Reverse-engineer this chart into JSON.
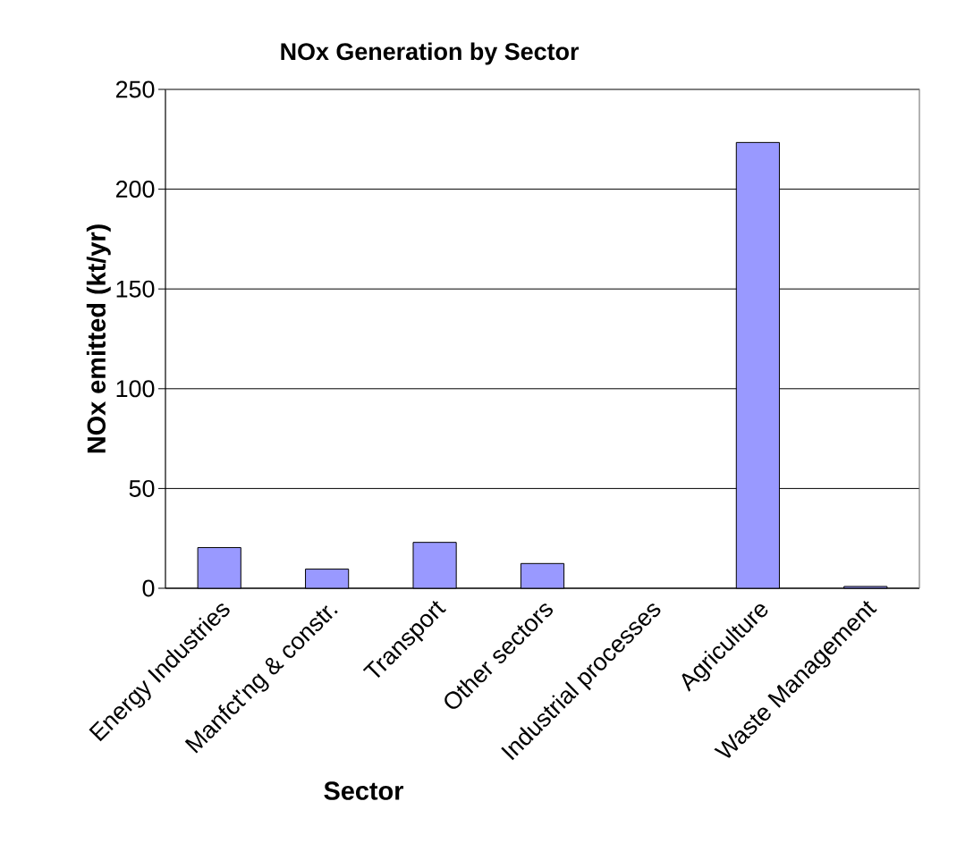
{
  "chart_data": {
    "type": "bar",
    "title": "NOx Generation by Sector",
    "xlabel": "Sector",
    "ylabel": "NOx emitted (kt/yr)",
    "categories": [
      "Energy Industries",
      "Manfct'ng & constr.",
      "Transport",
      "Other sectors",
      "Industrial processes",
      "Agriculture",
      "Waste Management"
    ],
    "values": [
      20.4,
      9.6,
      23,
      12.4,
      null,
      223.4,
      0.9
    ],
    "color": "#9999ff",
    "ylim": [
      0,
      250
    ],
    "yticks": [
      0,
      50,
      100,
      150,
      200,
      250
    ],
    "grid": "y"
  }
}
